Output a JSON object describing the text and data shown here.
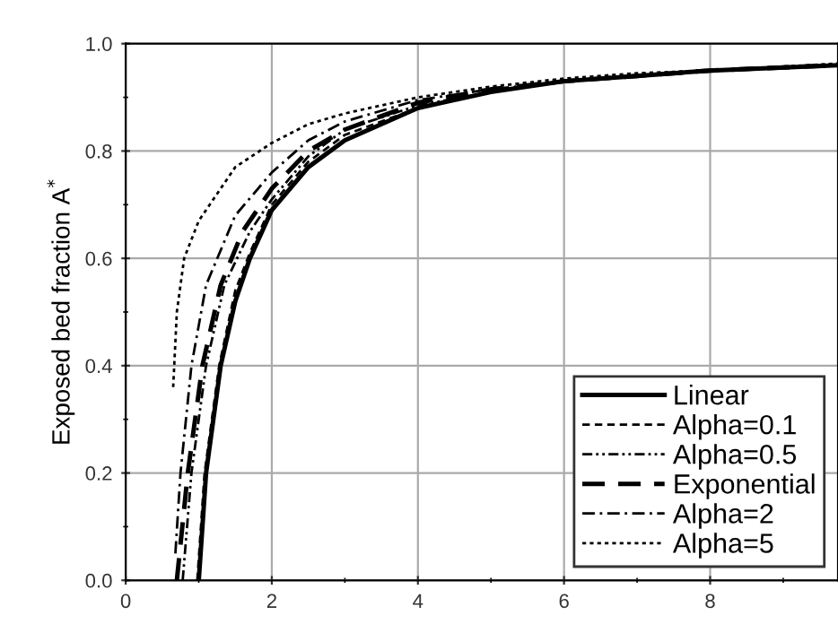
{
  "chart_data": {
    "type": "line",
    "ylabel": "Exposed bed fraction A$^{*}$",
    "xlim": [
      0,
      9.75
    ],
    "ylim": [
      0,
      1.0
    ],
    "xticks": [
      0,
      2,
      4,
      6,
      8
    ],
    "yticks": [
      {
        "value": 0,
        "label": "0.0"
      },
      0.2,
      0.4,
      0.6,
      0.8,
      {
        "value": 1,
        "label": "1.0"
      }
    ],
    "grid": true,
    "legend": "bottom right",
    "marker": "none",
    "series": [
      {
        "name": "Linear",
        "color": "#000000",
        "line_style": "solid",
        "x": [
          1.0,
          1.1,
          1.3,
          1.5,
          1.7,
          2.0,
          2.5,
          3,
          4,
          5,
          6,
          7,
          8,
          9.75
        ],
        "values": [
          0,
          0.2,
          0.4,
          0.52,
          0.6,
          0.69,
          0.77,
          0.82,
          0.88,
          0.91,
          0.93,
          0.94,
          0.95,
          0.96
        ]
      },
      {
        "name": "Alpha=0.1",
        "color": "#000000",
        "line_style": "dashed",
        "x": [
          0.98,
          1.08,
          1.28,
          1.5,
          1.7,
          2.0,
          2.5,
          3,
          4,
          5,
          6,
          7,
          8,
          9.75
        ],
        "values": [
          0,
          0.2,
          0.4,
          0.54,
          0.61,
          0.7,
          0.78,
          0.83,
          0.88,
          0.91,
          0.93,
          0.94,
          0.95,
          0.96
        ]
      },
      {
        "name": "Alpha=0.5",
        "color": "#000000",
        "line_style": "dashdotdot",
        "x": [
          0.78,
          0.9,
          1.1,
          1.35,
          1.7,
          2.0,
          2.5,
          3,
          4,
          5,
          6,
          7,
          8,
          9.75
        ],
        "values": [
          0,
          0.2,
          0.4,
          0.55,
          0.65,
          0.71,
          0.79,
          0.84,
          0.885,
          0.91,
          0.93,
          0.94,
          0.95,
          0.96
        ]
      },
      {
        "name": "Exponential",
        "color": "#000000",
        "line_style": "longdashed",
        "x": [
          0.7,
          0.85,
          1.05,
          1.3,
          1.6,
          2.0,
          2.5,
          3,
          4,
          5,
          6,
          7,
          8,
          9.75
        ],
        "values": [
          0,
          0.2,
          0.4,
          0.55,
          0.65,
          0.73,
          0.8,
          0.84,
          0.89,
          0.915,
          0.93,
          0.94,
          0.95,
          0.96
        ]
      },
      {
        "name": "Alpha=2",
        "color": "#000000",
        "line_style": "dashdot",
        "x": [
          0.68,
          0.75,
          0.9,
          1.1,
          1.5,
          2.0,
          2.5,
          3,
          4,
          5,
          6,
          7,
          8,
          9.75
        ],
        "values": [
          0.05,
          0.2,
          0.4,
          0.55,
          0.68,
          0.76,
          0.82,
          0.855,
          0.895,
          0.915,
          0.93,
          0.94,
          0.95,
          0.96
        ]
      },
      {
        "name": "Alpha=5",
        "color": "#000000",
        "line_style": "dotted",
        "x": [
          0.65,
          0.7,
          0.8,
          1.0,
          1.5,
          2.0,
          2.5,
          3,
          4,
          5,
          6,
          7,
          8,
          9.75
        ],
        "values": [
          0.36,
          0.5,
          0.6,
          0.67,
          0.77,
          0.815,
          0.85,
          0.87,
          0.9,
          0.92,
          0.935,
          0.945,
          0.95,
          0.963
        ]
      }
    ]
  }
}
